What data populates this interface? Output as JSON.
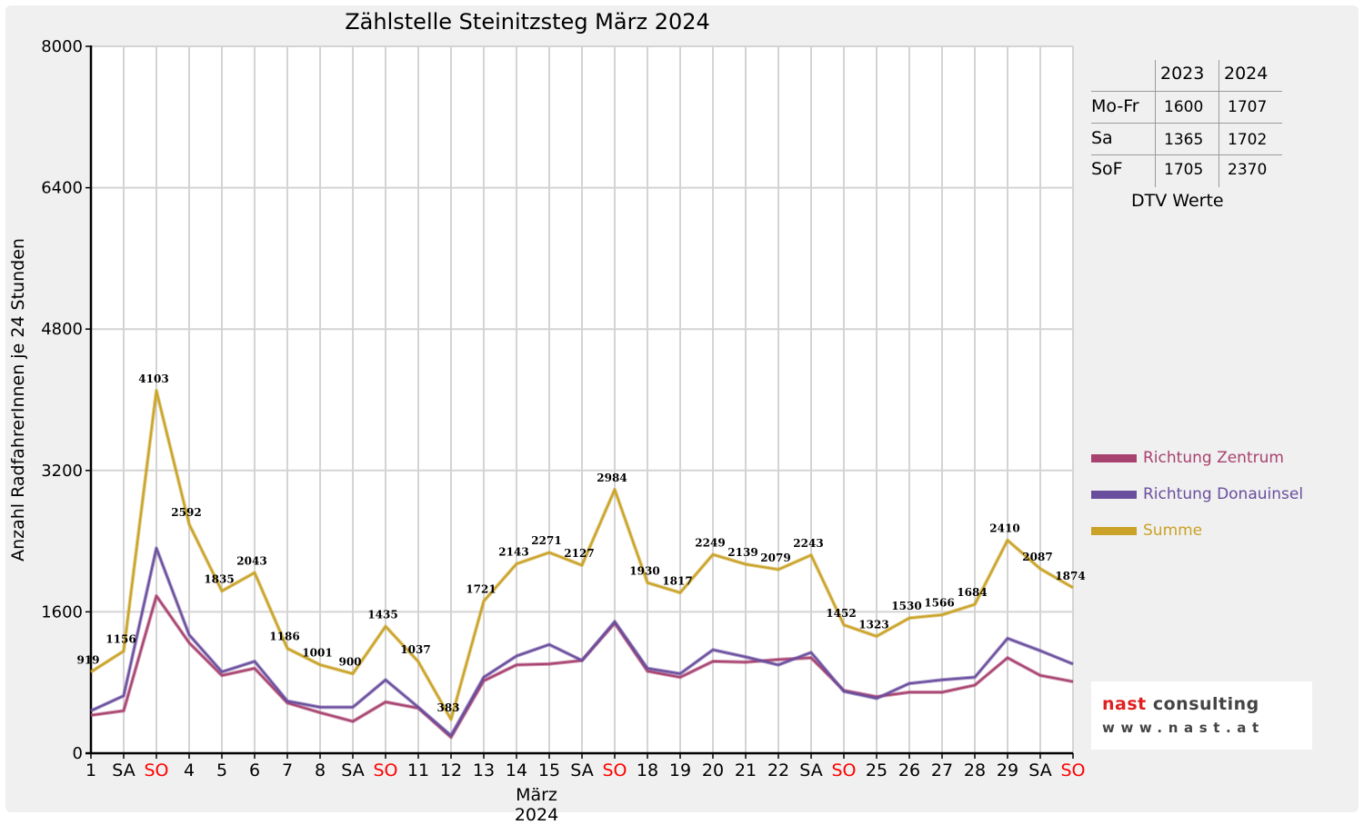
{
  "chart_data": {
    "type": "line",
    "title": "Zählstelle Steinitzsteg März 2024",
    "xlabel": "März 2024",
    "ylabel": "Anzahl RadfahrerInnen je 24 Stunden",
    "ylim": [
      0,
      8000
    ],
    "yticks": [
      "0",
      "1600",
      "3200",
      "4800",
      "6400",
      "8000"
    ],
    "grid": true,
    "legend_position": "right",
    "categories": [
      "1",
      "SA",
      "SO",
      "4",
      "5",
      "6",
      "7",
      "8",
      "SA",
      "SO",
      "11",
      "12",
      "13",
      "14",
      "15",
      "SA",
      "SO",
      "18",
      "19",
      "20",
      "21",
      "22",
      "SA",
      "SO",
      "25",
      "26",
      "27",
      "28",
      "29",
      "SA",
      "SO"
    ],
    "weekend_categories": [
      "SO"
    ],
    "weekend_color": "#ff0000",
    "series": [
      {
        "name": "Richtung Zentrum",
        "color": "#a8426f",
        "values": [
          430,
          480,
          1780,
          1250,
          880,
          960,
          570,
          460,
          360,
          580,
          510,
          180,
          820,
          1000,
          1010,
          1050,
          1470,
          930,
          860,
          1040,
          1030,
          1060,
          1080,
          710,
          640,
          690,
          690,
          770,
          1080,
          880,
          810
        ]
      },
      {
        "name": "Richtung Donauinsel",
        "color": "#6a4e9e",
        "values": [
          480,
          650,
          2320,
          1340,
          920,
          1040,
          590,
          520,
          520,
          830,
          520,
          200,
          860,
          1100,
          1230,
          1050,
          1490,
          960,
          900,
          1170,
          1090,
          1000,
          1140,
          700,
          620,
          790,
          830,
          860,
          1300,
          1160,
          1010
        ]
      },
      {
        "name": "Summe",
        "color": "#c9a227",
        "values": [
          919,
          1156,
          4103,
          2592,
          1835,
          2043,
          1186,
          1001,
          900,
          1435,
          1037,
          383,
          1721,
          2143,
          2271,
          2127,
          2984,
          1930,
          1817,
          2249,
          2139,
          2079,
          2243,
          1452,
          1323,
          1530,
          1566,
          1684,
          2410,
          2087,
          1874
        ]
      }
    ],
    "data_labels": [
      "919",
      "1156",
      "4103",
      "2592",
      "1835",
      "2043",
      "1186",
      "1001",
      "900",
      "1435",
      "1037",
      "383",
      "1721",
      "2143",
      "2271",
      "2127",
      "2984",
      "1930",
      "1817",
      "2249",
      "2139",
      "2079",
      "2243",
      "1452",
      "1323",
      "1530",
      "1566",
      "1684",
      "2410",
      "2087",
      "1874"
    ]
  },
  "dtv_table": {
    "header": [
      "",
      "2023",
      "2024"
    ],
    "rows": [
      {
        "label": "Mo-Fr",
        "y2023": "1600",
        "y2024": "1707"
      },
      {
        "label": "Sa",
        "y2023": "1365",
        "y2024": "1702"
      },
      {
        "label": "SoF",
        "y2023": "1705",
        "y2024": "2370"
      }
    ],
    "caption": "DTV Werte"
  },
  "legend": [
    {
      "label": "Richtung Zentrum",
      "color": "#a8426f"
    },
    {
      "label": "Richtung Donauinsel",
      "color": "#6a4e9e"
    },
    {
      "label": "Summe",
      "color": "#c9a227"
    }
  ],
  "logo": {
    "line1": "nast consulting",
    "line2": "www.nast.at",
    "accent": "#e02020"
  }
}
